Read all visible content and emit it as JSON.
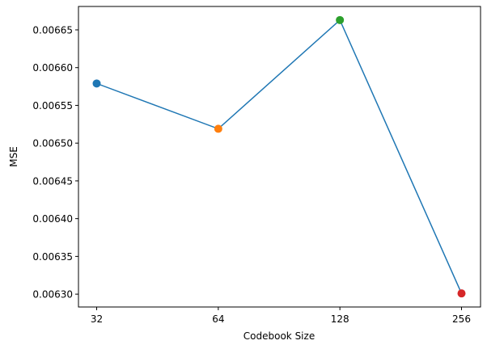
{
  "chart_data": {
    "type": "line",
    "title": "",
    "xlabel": "Codebook Size",
    "ylabel": "MSE",
    "categories": [
      "32",
      "64",
      "128",
      "256"
    ],
    "series": [
      {
        "values": [
          0.006579,
          0.006519,
          0.006663,
          0.006301
        ],
        "line_color": "#1f77b4",
        "marker_colors": [
          "#1f77b4",
          "#ff7f0e",
          "#2ca02c",
          "#d62728"
        ]
      }
    ],
    "ylim": [
      0.006283,
      0.006681
    ],
    "yticks": [
      0.0063,
      0.00635,
      0.0064,
      0.00645,
      0.0065,
      0.00655,
      0.0066,
      0.00665
    ],
    "ytick_labels": [
      "0.00630",
      "0.00635",
      "0.00640",
      "0.00645",
      "0.00650",
      "0.00655",
      "0.00660",
      "0.00665"
    ],
    "grid": false,
    "legend": "none"
  }
}
